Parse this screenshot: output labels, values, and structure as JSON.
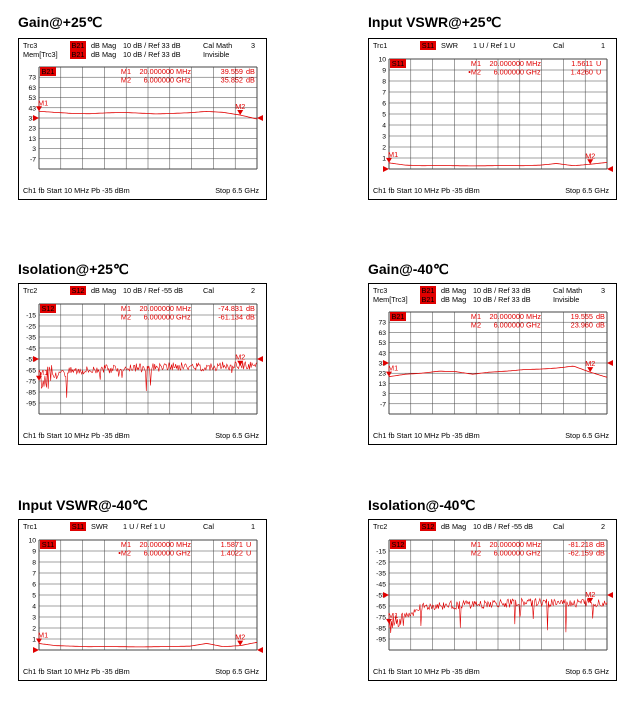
{
  "colors": {
    "trace": "#e00000",
    "grid": "#444444",
    "frame": "#000000",
    "badge_text": "#ffffff"
  },
  "panels": [
    {
      "title": "Gain@+25℃",
      "type": "gain",
      "header": {
        "line1": {
          "trc": "Trc3",
          "badge": "B21",
          "mag": "dB Mag",
          "scale": "10 dB /  Ref 33 dB",
          "cal": "Cal Math",
          "ch": "3"
        },
        "line2": {
          "trc": "Mem[Trc3]",
          "badge": "B21",
          "mag": "dB Mag",
          "scale": "10 dB /  Ref 33 dB",
          "cal": "Invisible"
        }
      },
      "markers": [
        {
          "id": "M1",
          "x": "20.000000",
          "unit": "MHz",
          "val": "39.559",
          "vunit": "dB"
        },
        {
          "id": "M2",
          "x": "6.000000",
          "unit": "GHz",
          "val": "35.852",
          "vunit": "dB"
        }
      ],
      "badge_grid": "B21",
      "yticks": [
        "73",
        "63",
        "53",
        "43",
        "33",
        "23",
        "13",
        "3",
        "-7"
      ],
      "footer": {
        "left": "Ch1  fb  Start  10 MHz   Pb   -35 dBm",
        "right": "Stop  6.5 GHz"
      },
      "marker_labels": [
        "M1",
        "M2"
      ]
    },
    {
      "title": "Input VSWR@+25℃",
      "type": "vswr",
      "header": {
        "line1": {
          "trc": "Trc1",
          "badge": "S11",
          "mag": "SWR",
          "scale": "1 U /  Ref 1 U",
          "cal": "Cal",
          "ch": "1"
        }
      },
      "markers": [
        {
          "id": "M1",
          "x": "20.000000",
          "unit": "MHz",
          "val": "1.5611",
          "vunit": "U"
        },
        {
          "id": "•M2",
          "x": "6.000000",
          "unit": "GHz",
          "val": "1.4260",
          "vunit": "U"
        }
      ],
      "badge_grid": "S11",
      "yticks": [
        "10",
        "9",
        "8",
        "7",
        "6",
        "5",
        "4",
        "3",
        "2",
        "1"
      ],
      "footer": {
        "left": "Ch1  fb  Start  10 MHz   Pb   -35 dBm",
        "right": "Stop  6.5 GHz"
      },
      "marker_labels": [
        "M1",
        "M2"
      ]
    },
    {
      "title": "Isolation@+25℃",
      "type": "iso",
      "header": {
        "line1": {
          "trc": "Trc2",
          "badge": "S12",
          "mag": "dB Mag",
          "scale": "10 dB /  Ref -55 dB",
          "cal": "Cal",
          "ch": "2"
        }
      },
      "markers": [
        {
          "id": "M1",
          "x": "20.000000",
          "unit": "MHz",
          "val": "-74.831",
          "vunit": "dB"
        },
        {
          "id": "M2",
          "x": "6.000000",
          "unit": "GHz",
          "val": "-61.134",
          "vunit": "dB"
        }
      ],
      "badge_grid": "S12",
      "yticks": [
        "-15",
        "-25",
        "-35",
        "-45",
        "-55",
        "-65",
        "-75",
        "-85",
        "-95"
      ],
      "footer": {
        "left": "Ch1  fb  Start  10 MHz   Pb   -35 dBm",
        "right": "Stop  6.5 GHz"
      },
      "marker_labels": [
        "M1",
        "M2"
      ]
    },
    {
      "title": "Gain@-40℃",
      "type": "gain",
      "header": {
        "line1": {
          "trc": "Trc3",
          "badge": "B21",
          "mag": "dB Mag",
          "scale": "10 dB /  Ref 33 dB",
          "cal": "Cal Math",
          "ch": "3"
        },
        "line2": {
          "trc": "Mem[Trc3]",
          "badge": "B21",
          "mag": "dB Mag",
          "scale": "10 dB /  Ref 33 dB",
          "cal": "Invisible"
        }
      },
      "markers": [
        {
          "id": "M1",
          "x": "20.000000",
          "unit": "MHz",
          "val": "19.555",
          "vunit": "dB"
        },
        {
          "id": "M2",
          "x": "6.000000",
          "unit": "GHz",
          "val": "23.960",
          "vunit": "dB"
        }
      ],
      "badge_grid": "B21",
      "yticks": [
        "73",
        "63",
        "53",
        "43",
        "33",
        "23",
        "13",
        "3",
        "-7"
      ],
      "footer": {
        "left": "Ch1  fb  Start  10 MHz   Pb   -35 dBm",
        "right": "Stop  6.5 GHz"
      },
      "marker_labels": [
        "M1",
        "M2"
      ]
    },
    {
      "title": "Input VSWR@-40℃",
      "type": "vswr",
      "header": {
        "line1": {
          "trc": "Trc1",
          "badge": "S11",
          "mag": "SWR",
          "scale": "1 U /  Ref 1 U",
          "cal": "Cal",
          "ch": "1"
        }
      },
      "markers": [
        {
          "id": "M1",
          "x": "20.000000",
          "unit": "MHz",
          "val": "1.5871",
          "vunit": "U"
        },
        {
          "id": "•M2",
          "x": "6.000000",
          "unit": "GHz",
          "val": "1.4022",
          "vunit": "U"
        }
      ],
      "badge_grid": "S11",
      "yticks": [
        "10",
        "9",
        "8",
        "7",
        "6",
        "5",
        "4",
        "3",
        "2",
        "1"
      ],
      "footer": {
        "left": "Ch1  fb  Start  10 MHz   Pb   -35 dBm",
        "right": "Stop  6.5 GHz"
      },
      "marker_labels": [
        "M1",
        "M2"
      ]
    },
    {
      "title": "Isolation@-40℃",
      "type": "iso",
      "header": {
        "line1": {
          "trc": "Trc2",
          "badge": "S12",
          "mag": "dB Mag",
          "scale": "10 dB /  Ref -55 dB",
          "cal": "Cal",
          "ch": "2"
        }
      },
      "markers": [
        {
          "id": "M1",
          "x": "20.000000",
          "unit": "MHz",
          "val": "-81.218",
          "vunit": "dB"
        },
        {
          "id": "M2",
          "x": "6.000000",
          "unit": "GHz",
          "val": "-62.159",
          "vunit": "dB"
        }
      ],
      "badge_grid": "S12",
      "yticks": [
        "-15",
        "-25",
        "-35",
        "-45",
        "-55",
        "-65",
        "-75",
        "-85",
        "-95"
      ],
      "footer": {
        "left": "Ch1  fb  Start  10 MHz   Pb   -35 dBm",
        "right": "Stop  6.5 GHz"
      },
      "marker_labels": [
        "M1",
        "M2"
      ]
    }
  ],
  "chart_data": [
    {
      "type": "line",
      "title": "Gain@+25℃",
      "x_range_ghz": [
        0.01,
        6.5
      ],
      "ylim": [
        -17,
        83
      ],
      "y_unit": "dB",
      "series": [
        {
          "name": "Trc3",
          "x": [
            0.01,
            0.5,
            1,
            1.5,
            2,
            2.5,
            3,
            3.5,
            4,
            4.5,
            5,
            5.5,
            6,
            6.5
          ],
          "values": [
            39.6,
            38.5,
            37.5,
            37.2,
            38,
            38.5,
            37.8,
            37,
            37.5,
            38.2,
            39.5,
            38.5,
            35.9,
            32
          ]
        }
      ]
    },
    {
      "type": "line",
      "title": "Input VSWR@+25℃",
      "x_range_ghz": [
        0.01,
        6.5
      ],
      "ylim": [
        1,
        11
      ],
      "y_unit": "U",
      "series": [
        {
          "name": "Trc1",
          "x": [
            0.01,
            0.5,
            1,
            1.5,
            2,
            2.5,
            3,
            3.5,
            4,
            4.5,
            5,
            5.5,
            6,
            6.5
          ],
          "values": [
            1.56,
            1.35,
            1.3,
            1.32,
            1.3,
            1.28,
            1.3,
            1.32,
            1.3,
            1.35,
            1.5,
            1.3,
            1.43,
            1.6
          ]
        }
      ]
    },
    {
      "type": "line",
      "title": "Isolation@+25℃",
      "x_range_ghz": [
        0.01,
        6.5
      ],
      "ylim": [
        -105,
        -5
      ],
      "y_unit": "dB",
      "series": [
        {
          "name": "Trc2",
          "x": [
            0.01,
            1,
            2,
            3,
            4,
            5,
            6,
            6.5
          ],
          "values": [
            -74.8,
            -65,
            -64,
            -63,
            -62,
            -62,
            -61.1,
            -60
          ]
        }
      ]
    },
    {
      "type": "line",
      "title": "Gain@-40℃",
      "x_range_ghz": [
        0.01,
        6.5
      ],
      "ylim": [
        -17,
        83
      ],
      "y_unit": "dB",
      "series": [
        {
          "name": "Trc3",
          "x": [
            0.01,
            0.5,
            1,
            1.5,
            2,
            2.5,
            3,
            3.5,
            4,
            4.5,
            5,
            5.5,
            6,
            6.5
          ],
          "values": [
            19.6,
            22,
            23,
            25,
            24.5,
            22,
            24,
            25,
            26.5,
            27,
            28,
            30,
            24,
            19
          ]
        }
      ]
    },
    {
      "type": "line",
      "title": "Input VSWR@-40℃",
      "x_range_ghz": [
        0.01,
        6.5
      ],
      "ylim": [
        1,
        11
      ],
      "y_unit": "U",
      "series": [
        {
          "name": "Trc1",
          "x": [
            0.01,
            0.5,
            1,
            1.5,
            2,
            2.5,
            3,
            3.5,
            4,
            4.5,
            5,
            5.5,
            6,
            6.5
          ],
          "values": [
            1.59,
            1.4,
            1.35,
            1.3,
            1.32,
            1.3,
            1.28,
            1.3,
            1.32,
            1.35,
            1.6,
            1.3,
            1.4,
            1.7
          ]
        }
      ]
    },
    {
      "type": "line",
      "title": "Isolation@-40℃",
      "x_range_ghz": [
        0.01,
        6.5
      ],
      "ylim": [
        -105,
        -5
      ],
      "y_unit": "dB",
      "series": [
        {
          "name": "Trc2",
          "x": [
            0.01,
            1,
            2,
            3,
            4,
            5,
            6,
            6.5
          ],
          "values": [
            -81.2,
            -66,
            -64,
            -63,
            -62,
            -62,
            -62.2,
            -61
          ]
        }
      ]
    }
  ]
}
